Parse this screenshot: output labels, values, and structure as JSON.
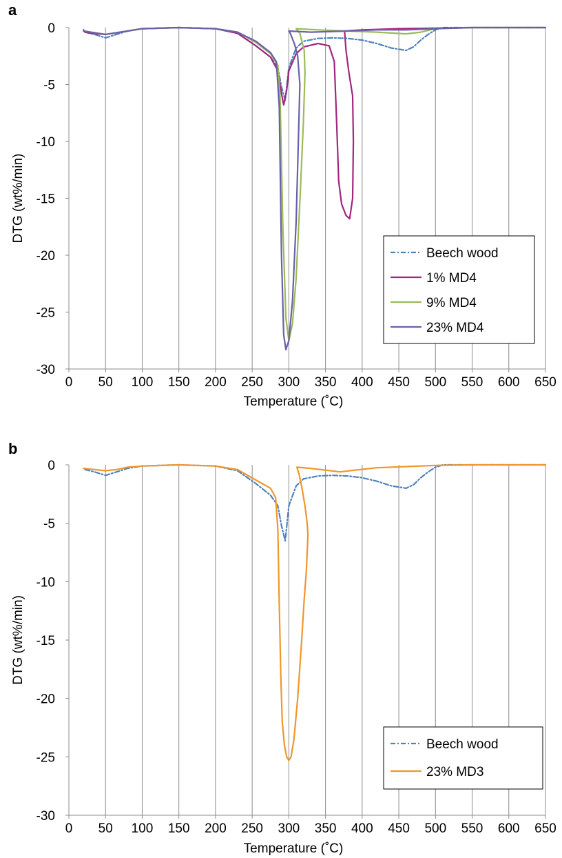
{
  "chart_data": [
    {
      "panel": "a",
      "type": "line",
      "xlabel": "Temperature (˚C)",
      "ylabel": "DTG (wt%/min)",
      "xlim": [
        0,
        650
      ],
      "ylim": [
        -30,
        0
      ],
      "xticks": [
        0,
        50,
        100,
        150,
        200,
        250,
        300,
        350,
        400,
        450,
        500,
        550,
        600,
        650
      ],
      "yticks": [
        0,
        -5,
        -10,
        -15,
        -20,
        -25,
        -30
      ],
      "grid": "vertical",
      "legend_position": "bottom-right",
      "series": [
        {
          "name": "Beech wood",
          "color": "#4F81BD",
          "style": "dash-dot",
          "x": [
            22,
            35,
            50,
            65,
            80,
            100,
            150,
            200,
            230,
            255,
            275,
            285,
            290,
            295,
            300,
            310,
            320,
            340,
            360,
            380,
            400,
            420,
            440,
            460,
            470,
            480,
            490,
            500,
            510,
            550,
            600,
            650
          ],
          "y": [
            -0.4,
            -0.6,
            -0.9,
            -0.6,
            -0.3,
            -0.1,
            0,
            -0.1,
            -0.5,
            -1.6,
            -2.6,
            -3.5,
            -5.2,
            -6.4,
            -3.5,
            -1.8,
            -1.2,
            -0.95,
            -0.9,
            -0.95,
            -1.1,
            -1.4,
            -1.8,
            -2.0,
            -1.7,
            -1.1,
            -0.6,
            -0.2,
            0,
            0,
            0,
            0
          ]
        },
        {
          "name": "1% MD4",
          "color": "#A0267F",
          "style": "solid",
          "x": [
            20,
            22,
            30,
            50,
            80,
            100,
            150,
            200,
            230,
            255,
            275,
            285,
            290,
            293,
            297,
            300,
            310,
            320,
            340,
            355,
            362,
            365,
            368,
            372,
            378,
            383,
            387,
            388,
            387,
            382,
            378,
            376,
            400,
            450,
            500,
            550,
            600,
            650
          ],
          "y": [
            -0.2,
            -0.4,
            -0.5,
            -0.6,
            -0.3,
            -0.1,
            0,
            -0.1,
            -0.5,
            -1.6,
            -2.6,
            -3.8,
            -5.8,
            -6.8,
            -5.5,
            -3.8,
            -2.3,
            -1.7,
            -1.4,
            -1.6,
            -3.0,
            -8.0,
            -13.5,
            -15.5,
            -16.5,
            -16.8,
            -15.0,
            -10.0,
            -6.0,
            -4.0,
            -2.0,
            -0.3,
            -0.2,
            -0.1,
            -0.05,
            0,
            0,
            0
          ]
        },
        {
          "name": "9% MD4",
          "color": "#9BBB59",
          "style": "solid",
          "x": [
            20,
            50,
            80,
            100,
            150,
            200,
            230,
            255,
            275,
            285,
            288,
            292,
            296,
            300,
            305,
            310,
            316,
            320,
            322,
            321,
            315,
            310,
            340,
            380,
            420,
            460,
            480,
            500,
            550,
            600,
            650
          ],
          "y": [
            -0.3,
            -0.6,
            -0.3,
            -0.1,
            0,
            -0.1,
            -0.4,
            -1.3,
            -2.3,
            -3.3,
            -6.0,
            -18.0,
            -25.5,
            -27.5,
            -26.0,
            -22.0,
            -14.0,
            -8.0,
            -4.0,
            -2.0,
            -0.5,
            -0.1,
            -0.2,
            -0.3,
            -0.4,
            -0.55,
            -0.4,
            -0.1,
            0,
            0,
            0
          ]
        },
        {
          "name": "23% MD4",
          "color": "#6A5FA8",
          "style": "solid",
          "x": [
            20,
            50,
            80,
            100,
            150,
            200,
            230,
            255,
            275,
            283,
            287,
            290,
            293,
            296,
            300,
            305,
            310,
            313,
            315,
            312,
            308,
            305,
            302,
            300,
            330,
            380,
            420,
            460,
            500,
            550,
            600,
            650
          ],
          "y": [
            -0.3,
            -0.6,
            -0.3,
            -0.1,
            0,
            -0.1,
            -0.4,
            -1.2,
            -2.2,
            -3.0,
            -7.0,
            -20.0,
            -27.0,
            -28.3,
            -27.5,
            -24.0,
            -17.0,
            -10.0,
            -5.0,
            -2.5,
            -1.5,
            -1.0,
            -0.5,
            -0.3,
            -0.4,
            -0.3,
            -0.2,
            -0.2,
            -0.1,
            0,
            0,
            0
          ]
        }
      ]
    },
    {
      "panel": "b",
      "type": "line",
      "xlabel": "Temperature (˚C)",
      "ylabel": "DTG (wt%/min)",
      "xlim": [
        0,
        650
      ],
      "ylim": [
        -30,
        0
      ],
      "xticks": [
        0,
        50,
        100,
        150,
        200,
        250,
        300,
        350,
        400,
        450,
        500,
        550,
        600,
        650
      ],
      "yticks": [
        0,
        -5,
        -10,
        -15,
        -20,
        -25,
        -30
      ],
      "grid": "vertical",
      "legend_position": "bottom-right",
      "series": [
        {
          "name": "Beech wood",
          "color": "#4F81BD",
          "style": "dash-dot",
          "x": [
            22,
            35,
            50,
            65,
            80,
            100,
            150,
            200,
            230,
            255,
            275,
            285,
            290,
            295,
            300,
            310,
            320,
            340,
            360,
            380,
            400,
            420,
            440,
            460,
            470,
            480,
            490,
            500,
            510,
            550,
            600,
            650
          ],
          "y": [
            -0.4,
            -0.6,
            -0.9,
            -0.6,
            -0.3,
            -0.1,
            0,
            -0.1,
            -0.5,
            -1.6,
            -2.6,
            -3.5,
            -5.2,
            -6.5,
            -3.5,
            -1.8,
            -1.2,
            -0.95,
            -0.9,
            -0.95,
            -1.1,
            -1.4,
            -1.8,
            -2.0,
            -1.7,
            -1.1,
            -0.6,
            -0.2,
            0,
            0,
            0,
            0
          ]
        },
        {
          "name": "23% MD3",
          "color": "#F0962A",
          "style": "solid",
          "x": [
            20,
            35,
            50,
            65,
            80,
            100,
            150,
            200,
            230,
            255,
            275,
            282,
            285,
            287,
            289,
            291,
            294,
            297,
            300,
            303,
            307,
            312,
            317,
            321,
            324,
            325,
            326,
            325,
            322,
            318,
            314,
            311,
            330,
            350,
            370,
            390,
            420,
            460,
            500,
            550,
            600,
            650
          ],
          "y": [
            -0.3,
            -0.4,
            -0.5,
            -0.4,
            -0.2,
            -0.1,
            0,
            -0.1,
            -0.4,
            -1.3,
            -2.0,
            -2.8,
            -5.5,
            -12.0,
            -18.0,
            -22.0,
            -24.0,
            -25.0,
            -25.3,
            -25.0,
            -23.5,
            -20.0,
            -15.5,
            -11.5,
            -9.0,
            -7.5,
            -6.0,
            -5.0,
            -3.5,
            -2.0,
            -0.8,
            -0.2,
            -0.3,
            -0.45,
            -0.6,
            -0.45,
            -0.25,
            -0.15,
            -0.05,
            0,
            0,
            0
          ]
        }
      ]
    }
  ]
}
